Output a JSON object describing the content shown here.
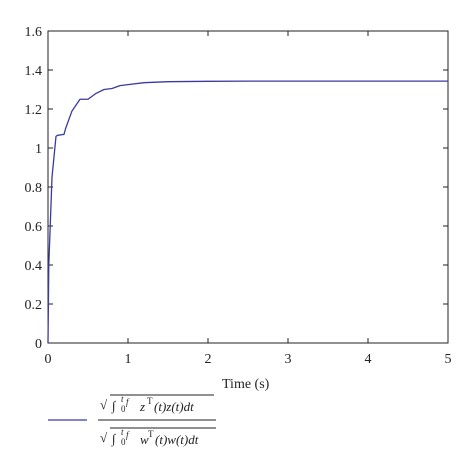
{
  "chart_data": {
    "type": "line",
    "xlabel": "Time (s)",
    "ylabel": "",
    "xlim": [
      0,
      5
    ],
    "ylim": [
      0,
      1.6
    ],
    "x_ticks": [
      "0",
      "1",
      "2",
      "3",
      "4",
      "5"
    ],
    "y_ticks": [
      "0",
      "0.2",
      "0.4",
      "0.6",
      "0.8",
      "1",
      "1.2",
      "1.4",
      "1.6"
    ],
    "grid": false,
    "legend_position": "bottom-left",
    "line_color": "#3a3aa0",
    "legend": {
      "sqrt_sign": "√",
      "int_sign": "∫",
      "lower_limit": "0",
      "upper_limit": "t",
      "upper_limit_sub": "f",
      "numerator_body": "z",
      "numerator_sup": "T",
      "numerator_tail": "(t)z(t)dt",
      "denominator_body": "w",
      "denominator_sup": "T",
      "denominator_tail": "(t)w(t)dt"
    },
    "series": [
      {
        "x": [
          0,
          0.01,
          0.05,
          0.1,
          0.12,
          0.2,
          0.22,
          0.3,
          0.4,
          0.5,
          0.6,
          0.7,
          0.8,
          0.9,
          1.0,
          1.2,
          1.5,
          2.0,
          2.5,
          3.0,
          4.0,
          5.0
        ],
        "y": [
          0,
          0.4,
          0.85,
          1.06,
          1.065,
          1.07,
          1.1,
          1.19,
          1.25,
          1.25,
          1.28,
          1.3,
          1.305,
          1.32,
          1.325,
          1.335,
          1.34,
          1.342,
          1.343,
          1.343,
          1.343,
          1.343
        ]
      }
    ]
  }
}
